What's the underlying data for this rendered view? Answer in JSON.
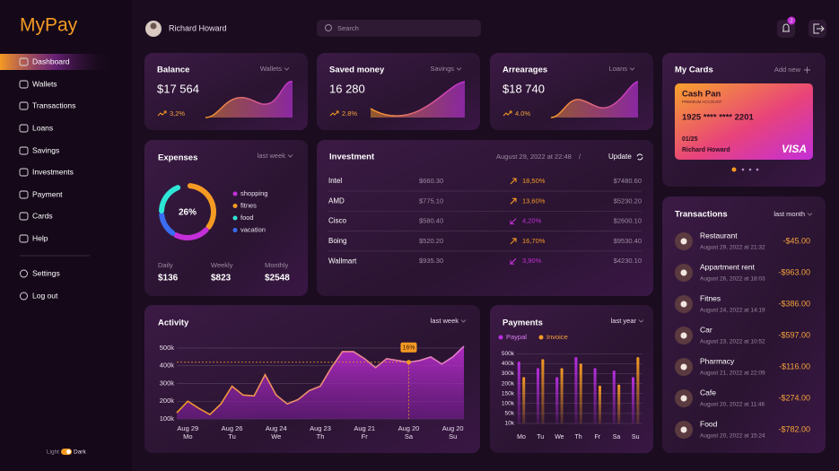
{
  "sidebar": {
    "logo": "MyPay",
    "nav": [
      "Dashboard",
      "Wallets",
      "Transactions",
      "Loans",
      "Savings",
      "Investments",
      "Payment",
      "Cards",
      "Help"
    ],
    "active": 0,
    "secondary": [
      "Settings",
      "Log out"
    ],
    "theme": {
      "light": "Light",
      "dark": "Dark"
    }
  },
  "header": {
    "user": "Richard Howard",
    "search": "Search",
    "notifications": "2"
  },
  "summary": [
    {
      "title": "Balance",
      "filter": "Wallets",
      "amount": "$17 564",
      "change": "3,2%"
    },
    {
      "title": "Saved money",
      "filter": "Savings",
      "amount": "16 280",
      "change": "2.8%"
    },
    {
      "title": "Arrearages",
      "filter": "Loans",
      "amount": "$18 740",
      "change": "4.0%"
    }
  ],
  "my_cards": {
    "title": "My Cards",
    "action": "Add new",
    "card": {
      "name": "Cash Pan",
      "type": "PREMIUM ACCOUNT",
      "number": "1925  ****  ****  2201",
      "expiry": "01/25",
      "holder": "Richard Howard",
      "brand": "VISA"
    }
  },
  "expenses": {
    "title": "Expenses",
    "filter": "last week",
    "center": "26%",
    "legend": [
      {
        "name": "shopping",
        "color": "#c42fd8"
      },
      {
        "name": "fitnes",
        "color": "#f59a23"
      },
      {
        "name": "food",
        "color": "#2ee6d6"
      },
      {
        "name": "vacation",
        "color": "#3a6df0"
      }
    ],
    "stats": [
      {
        "label": "Daily",
        "value": "$136"
      },
      {
        "label": "Weekly",
        "value": "$823"
      },
      {
        "label": "Monthly",
        "value": "$2548"
      }
    ]
  },
  "investment": {
    "title": "Investment",
    "date": "August 29, 2022 at 22:48",
    "separator": "/",
    "action": "Update",
    "rows": [
      {
        "name": "Intel",
        "price": "$660.30",
        "change": "18,50%",
        "trend": "up",
        "value": "$7480.60"
      },
      {
        "name": "AMD",
        "price": "$775.10",
        "change": "13,60%",
        "trend": "up",
        "value": "$5230.20"
      },
      {
        "name": "Cisco",
        "price": "$580.40",
        "change": "4,20%",
        "trend": "down",
        "value": "$2600.10"
      },
      {
        "name": "Boing",
        "price": "$520.20",
        "change": "16,70%",
        "trend": "up",
        "value": "$9530.40"
      },
      {
        "name": "Wallmart",
        "price": "$935.30",
        "change": "3,90%",
        "trend": "down",
        "value": "$4230.10"
      }
    ]
  },
  "transactions": {
    "title": "Transactions",
    "filter": "last month",
    "items": [
      {
        "name": "Restaurant",
        "date": "August 29, 2022 at 21:32",
        "amount": "-$45.00"
      },
      {
        "name": "Appartment rent",
        "date": "August 26, 2022 at 18:03",
        "amount": "-$963.00"
      },
      {
        "name": "Fitnes",
        "date": "August 24, 2022 at 14:19",
        "amount": "-$386.00"
      },
      {
        "name": "Car",
        "date": "August 23, 2022 at 10:52",
        "amount": "-$597.00"
      },
      {
        "name": "Pharmacy",
        "date": "August 21, 2022 at 22:09",
        "amount": "-$116.00"
      },
      {
        "name": "Cafe",
        "date": "August 20, 2022 at 11:46",
        "amount": "-$274.00"
      },
      {
        "name": "Food",
        "date": "August 20, 2022 at 15:24",
        "amount": "-$782.00"
      }
    ]
  },
  "activity": {
    "title": "Activity",
    "filter": "last week",
    "chart": {
      "type": "area",
      "color": "#c42fd8",
      "categories": [
        null,
        "Aug 29",
        null,
        null,
        null,
        "Aug 26",
        null,
        null,
        null,
        "Aug 24",
        null,
        null,
        null,
        "Aug 23",
        null,
        null,
        null,
        "Aug 21",
        null,
        null,
        null,
        "Aug 20",
        null,
        null,
        null,
        "Aug 20",
        null
      ],
      "weekdays": [
        null,
        "Mo",
        null,
        null,
        null,
        "Tu",
        null,
        null,
        null,
        "We",
        null,
        null,
        null,
        "Th",
        null,
        null,
        null,
        "Fr",
        null,
        null,
        null,
        "Sa",
        null,
        null,
        null,
        "Su",
        null
      ],
      "values": [
        135000,
        200000,
        160000,
        125000,
        185000,
        285000,
        235000,
        230000,
        350000,
        235000,
        185000,
        210000,
        260000,
        285000,
        390000,
        480000,
        480000,
        440000,
        390000,
        440000,
        430000,
        420000,
        430000,
        450000,
        410000,
        450000,
        510000
      ],
      "ylim": [
        100000,
        520000
      ],
      "yticks": [
        {
          "value": 100000,
          "label": "100k"
        },
        {
          "value": 200000,
          "label": "200k"
        },
        {
          "value": 300000,
          "label": "300k"
        },
        {
          "value": 400000,
          "label": "400k"
        },
        {
          "value": 500000,
          "label": "500k"
        }
      ],
      "annotation": {
        "at": 21,
        "label": "16%"
      },
      "grid": true
    }
  },
  "payments": {
    "title": "Payments",
    "filter": "last year",
    "chart": {
      "type": "bar",
      "categories": [
        "Mo",
        "Tu",
        "We",
        "Th",
        "Fr",
        "Sa",
        "Su"
      ],
      "series": [
        {
          "name": "Paypal",
          "color": "#b82ee0",
          "values": [
            420000,
            355000,
            265000,
            465000,
            355000,
            330000,
            265000
          ]
        },
        {
          "name": "Invoice",
          "color": "#f59a23",
          "values": [
            265000,
            445000,
            355000,
            400000,
            190000,
            195000,
            465000
          ]
        }
      ],
      "ylim": [
        10000,
        500000
      ],
      "yticks": [
        {
          "value": 10000,
          "label": "10k"
        },
        {
          "value": 50000,
          "label": "50k"
        },
        {
          "value": 100000,
          "label": "100k"
        },
        {
          "value": 150000,
          "label": "150k"
        },
        {
          "value": 200000,
          "label": "200k"
        },
        {
          "value": 300000,
          "label": "300k"
        },
        {
          "value": 400000,
          "label": "400k"
        },
        {
          "value": 500000,
          "label": "500k"
        }
      ],
      "grid": true
    }
  }
}
